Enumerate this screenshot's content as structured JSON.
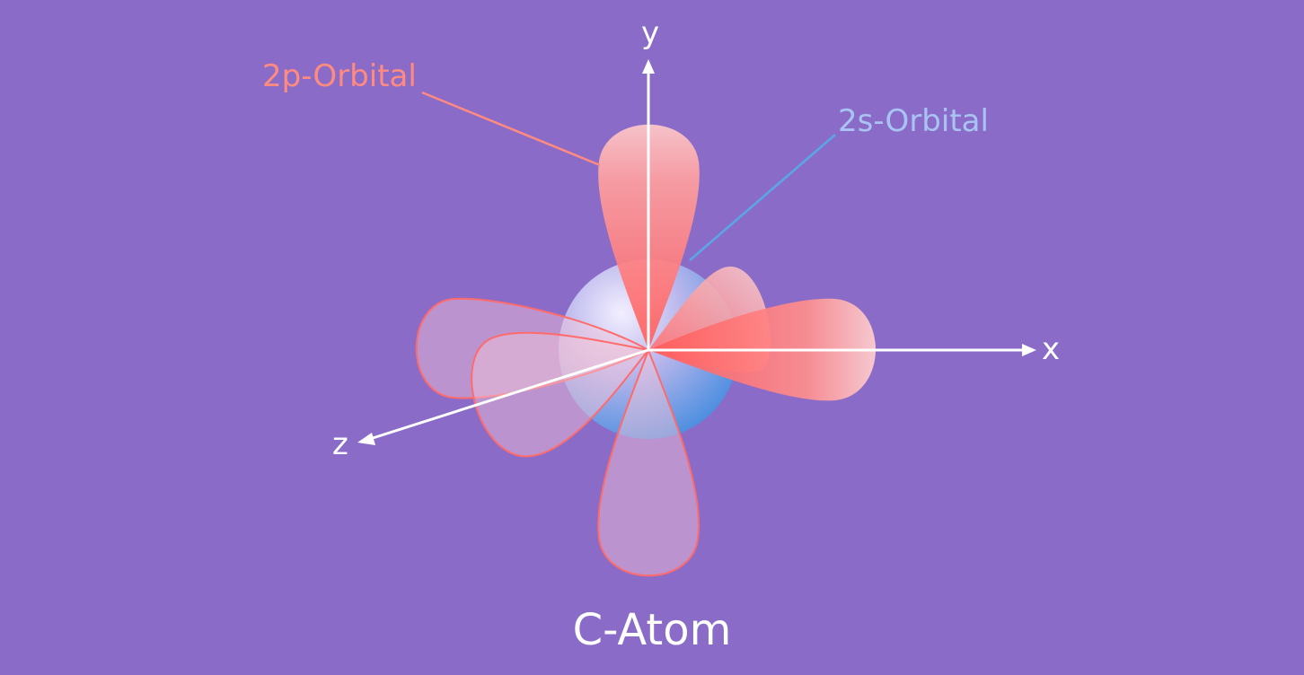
{
  "labels": {
    "p_orbital": "2p-Orbital",
    "s_orbital": "2s-Orbital",
    "caption": "C-Atom"
  },
  "axes": {
    "x": "x",
    "y": "y",
    "z": "z"
  },
  "colors": {
    "background": "#8a6cc8",
    "p_orbital_label": "#ff8a80",
    "s_orbital_label": "#a9c4f2",
    "p_leader_line": "#ff8a80",
    "s_leader_line": "#5aa7e8",
    "axis": "#ffffff"
  }
}
